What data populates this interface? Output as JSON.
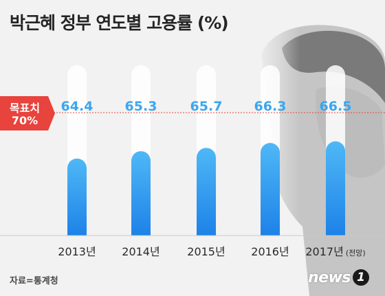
{
  "title": "박근혜 정부 연도별 고용률 (%)",
  "target": {
    "line1": "목표치",
    "line2": "70%",
    "value": 70
  },
  "source": "자료=통계청",
  "logo": {
    "word": "news",
    "num": "1"
  },
  "colors": {
    "bar_top": "#4fb8f6",
    "bar_bottom": "#1d82e8",
    "value_label": "#3aa6ef",
    "target_line": "#e8433d",
    "target_box": "#e8433d",
    "background": "#f2f2f2"
  },
  "chart_data": {
    "type": "bar",
    "title": "박근혜 정부 연도별 고용률 (%)",
    "categories": [
      "2013년",
      "2014년",
      "2015년",
      "2016년",
      "2017년"
    ],
    "category_notes": [
      "",
      "",
      "",
      "",
      "(전망)"
    ],
    "values": [
      64.4,
      65.3,
      65.7,
      66.3,
      66.5
    ],
    "value_labels": [
      "64.4",
      "65.3",
      "65.7",
      "66.3",
      "66.5"
    ],
    "reference_line": {
      "value": 70,
      "label": "목표치 70%"
    },
    "xlabel": "",
    "ylabel": "",
    "ylim": [
      55,
      70
    ],
    "grid": false,
    "legend": "none"
  }
}
